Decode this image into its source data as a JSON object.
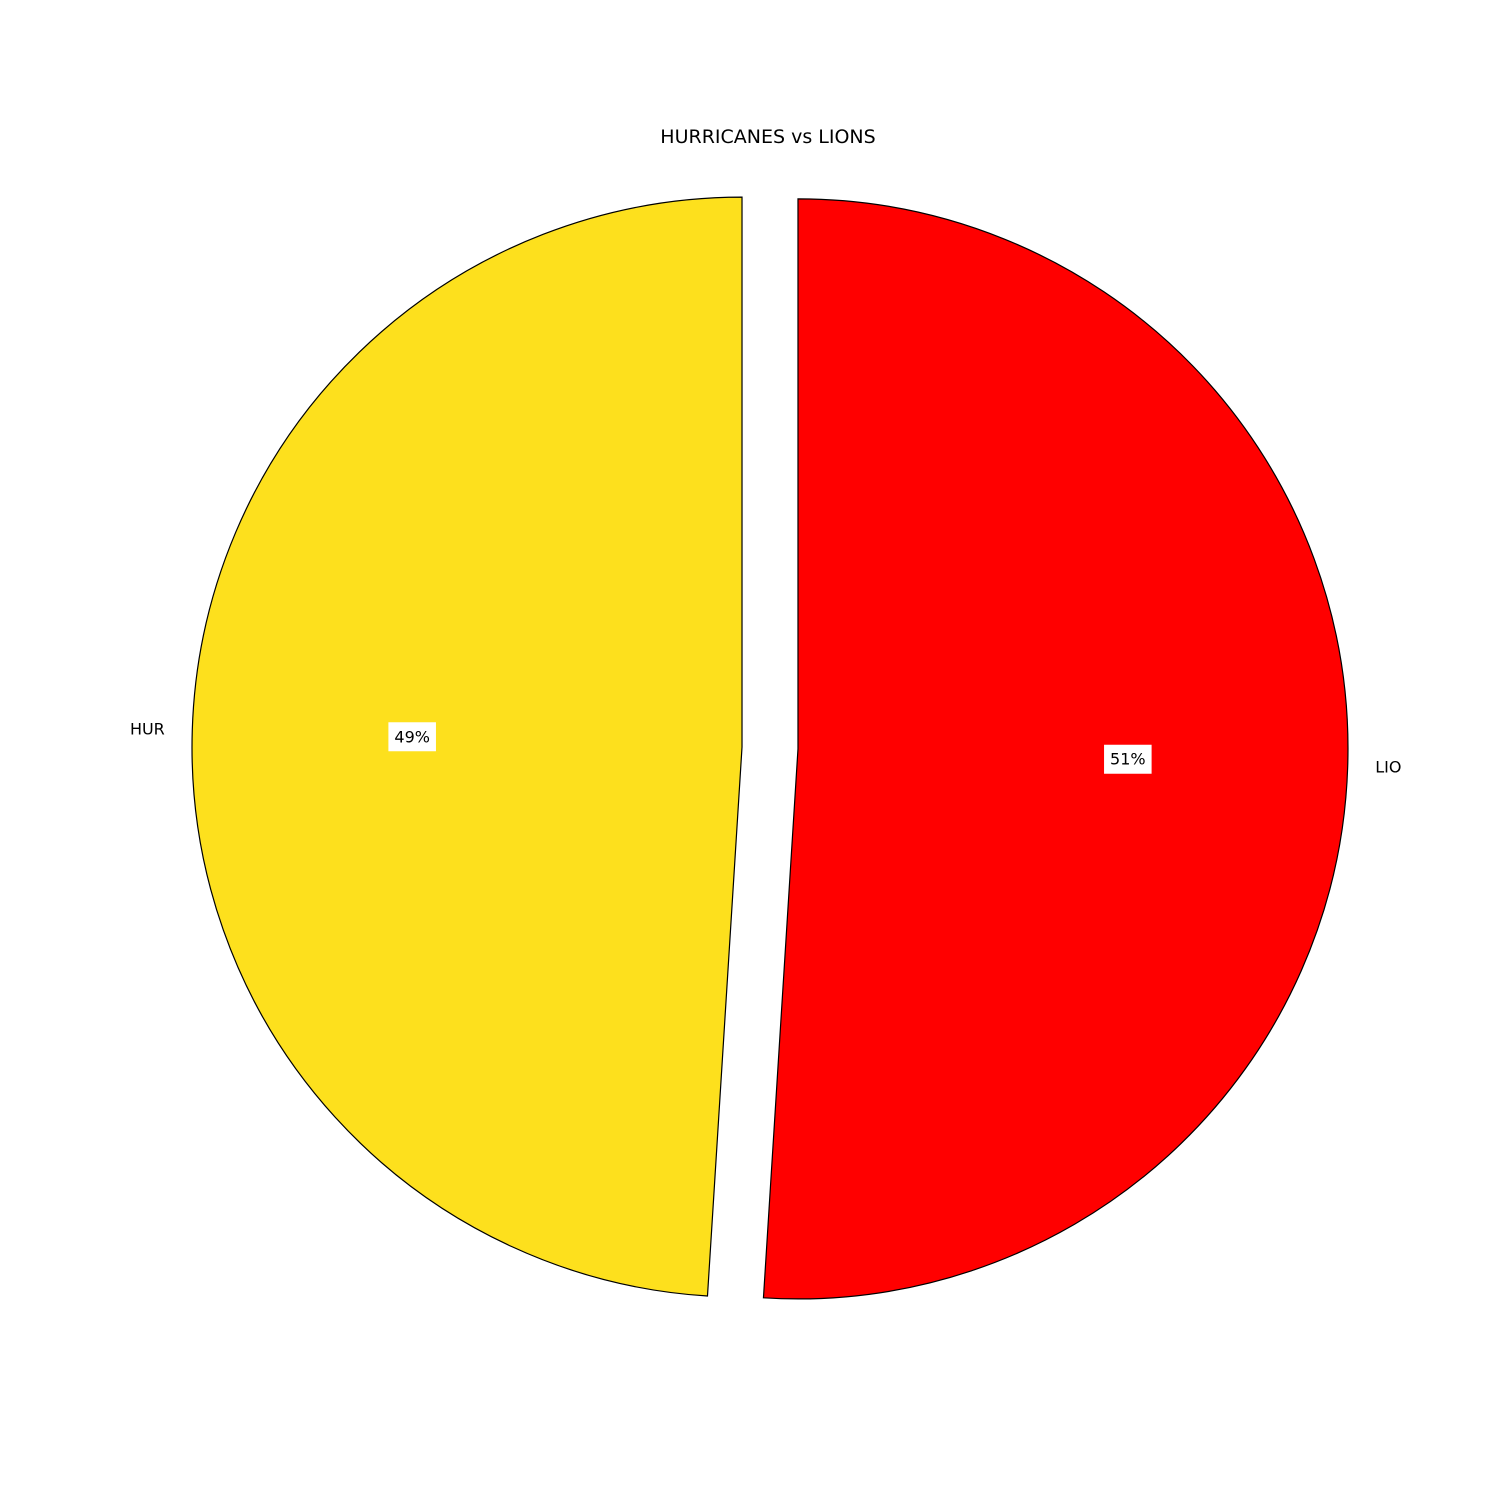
{
  "chart_data": {
    "type": "pie",
    "title": "HURRICANES vs LIONS",
    "slices": [
      {
        "label": "HUR",
        "value": 49,
        "pct_label": "49%",
        "color": "#fde01d"
      },
      {
        "label": "LIO",
        "value": 51,
        "pct_label": "51%",
        "color": "#ff0000"
      }
    ],
    "start_angle_deg": 90,
    "direction": "counterclockwise",
    "exploded": true
  }
}
